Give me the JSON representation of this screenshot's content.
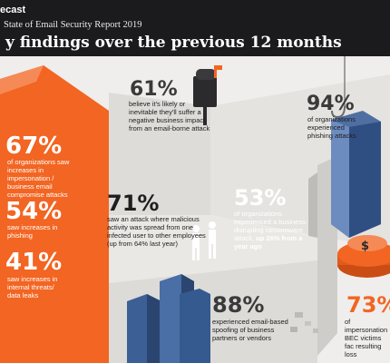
{
  "header": {
    "brand": "ecast",
    "report_title": "State of Email Security Report 2019",
    "page_title": "y findings over the previous 12 months"
  },
  "stats": {
    "s67": {
      "value": "67%",
      "desc": "of organizations saw increases in impersonation / business email compromise attacks"
    },
    "s54": {
      "value": "54%",
      "desc": "saw increases in phishing"
    },
    "s41": {
      "value": "41%",
      "desc": "saw increases in internal threats/ data leaks"
    },
    "s61": {
      "value": "61%",
      "desc": "believe it's likely or inevitable they'll suffer a negative business impact from an email-borne attack"
    },
    "s94": {
      "value": "94%",
      "desc": "of organizations experienced phishing attacks"
    },
    "s71": {
      "value": "71%",
      "desc": "saw an attack where malicious activity was spread from one infected user to other employees (up from 64% last year)"
    },
    "s53": {
      "value": "53%",
      "desc_a": "of organizations experienced a business-disrupting ransomware attack,",
      "desc_b": "up 26% from a year ago"
    },
    "s88": {
      "value": "88%",
      "desc": "experienced email-based spoofing of business partners or vendors"
    },
    "s73": {
      "value": "73%",
      "desc": "of impersonation BEC victims fac resulting loss"
    }
  },
  "colors": {
    "orange": "#f26522",
    "dark": "#1b1b1d",
    "wall": "#d8d7d4",
    "building": "#3c5f95"
  },
  "icons": [
    "mailbox-icon",
    "fishhook-icon",
    "money-pile-icon",
    "people-icon",
    "buildings-icon"
  ]
}
